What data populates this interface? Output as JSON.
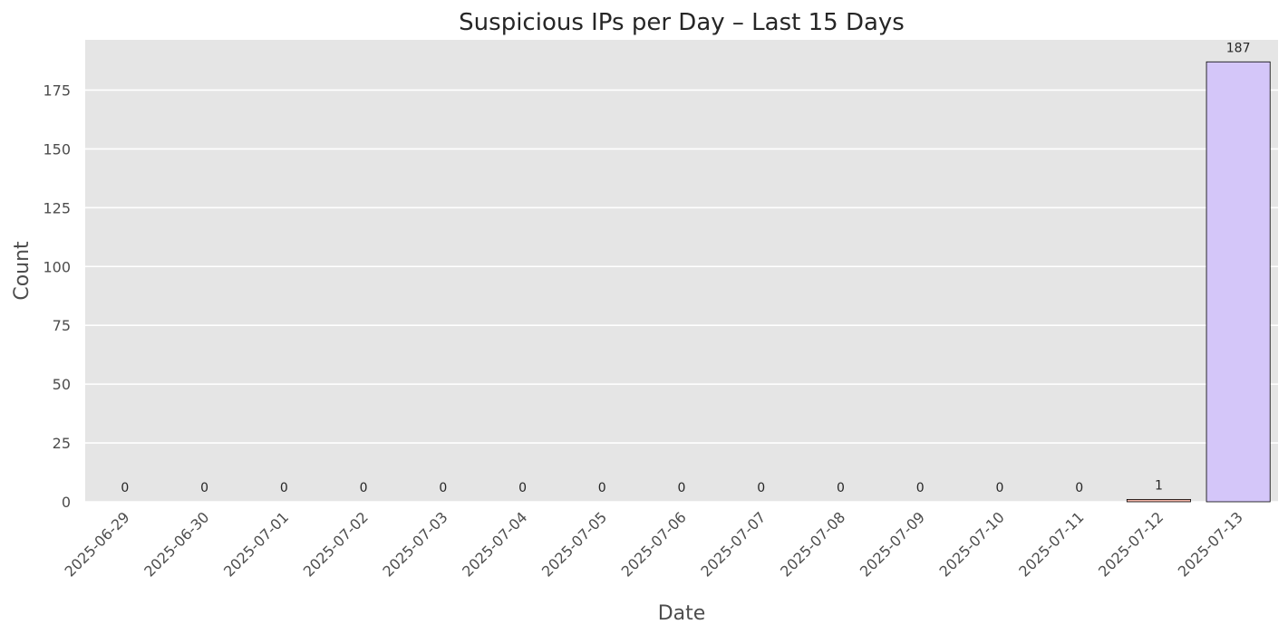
{
  "chart_data": {
    "type": "bar",
    "title": "Suspicious IPs per Day – Last 15 Days",
    "xlabel": "Date",
    "ylabel": "Count",
    "categories": [
      "2025-06-29",
      "2025-06-30",
      "2025-07-01",
      "2025-07-02",
      "2025-07-03",
      "2025-07-04",
      "2025-07-05",
      "2025-07-06",
      "2025-07-07",
      "2025-07-08",
      "2025-07-09",
      "2025-07-10",
      "2025-07-11",
      "2025-07-12",
      "2025-07-13"
    ],
    "values": [
      0,
      0,
      0,
      0,
      0,
      0,
      0,
      0,
      0,
      0,
      0,
      0,
      0,
      1,
      187
    ],
    "data_labels": [
      "0",
      "0",
      "0",
      "0",
      "0",
      "0",
      "0",
      "0",
      "0",
      "0",
      "0",
      "0",
      "0",
      "1",
      "187"
    ],
    "ylim": [
      0,
      196.35
    ],
    "yticks": [
      0,
      25,
      50,
      75,
      100,
      125,
      150,
      175
    ],
    "grid": true,
    "bar_colors": [
      "#fbb4ae",
      "#fbb4ae",
      "#fbb4ae",
      "#fbb4ae",
      "#fbb4ae",
      "#fbb4ae",
      "#fbb4ae",
      "#fbb4ae",
      "#fbb4ae",
      "#fbb4ae",
      "#fbb4ae",
      "#fbb4ae",
      "#fbb4ae",
      "#f4b6a8",
      "#d4c6f9"
    ],
    "bar_edge_color": "#000000",
    "plot_background": "#e5e5e5",
    "grid_color": "#ffffff"
  }
}
